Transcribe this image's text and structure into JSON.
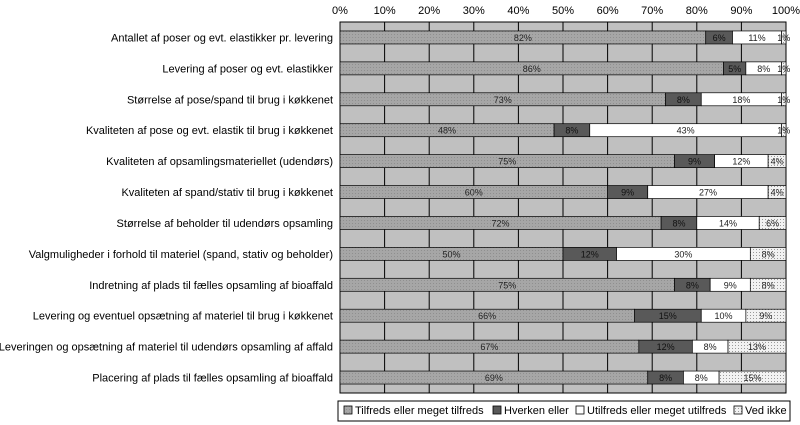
{
  "chart_data": {
    "type": "bar",
    "orientation": "horizontal",
    "stacked": true,
    "percent_stacked": true,
    "xlim": [
      0,
      100
    ],
    "x_ticks": [
      "0%",
      "10%",
      "20%",
      "30%",
      "40%",
      "50%",
      "60%",
      "70%",
      "80%",
      "90%",
      "100%"
    ],
    "grid": true,
    "legend_position": "bottom",
    "categories": [
      "Antallet af poser og evt. elastikker pr. levering",
      "Levering af poser og evt. elastikker",
      "Størrelse af pose/spand til brug i køkkenet",
      "Kvaliteten af pose og evt. elastik til brug i køkkenet",
      "Kvaliteten af opsamlingsmateriellet (udendørs)",
      "Kvaliteten af spand/stativ til brug i køkkenet",
      "Størrelse af beholder til udendørs opsamling",
      "Valgmuligheder i forhold til materiel (spand, stativ og beholder)",
      "Indretning af plads til fælles opsamling af bioaffald",
      "Levering og eventuel opsætning af materiel til brug i køkkenet",
      "Leveringen og opsætning af materiel til udendørs opsamling af affald",
      "Placering af plads til fælles opsamling af bioaffald"
    ],
    "series": [
      {
        "name": "Tilfreds eller meget tilfreds",
        "color": "#a6a6a6",
        "values": [
          82,
          86,
          73,
          48,
          75,
          60,
          72,
          50,
          75,
          66,
          67,
          69
        ],
        "labels": [
          "82%",
          "86%",
          "73%",
          "48%",
          "75%",
          "60%",
          "72%",
          "50%",
          "75%",
          "66%",
          "67%",
          "69%"
        ]
      },
      {
        "name": "Hverken eller",
        "color": "#595959",
        "values": [
          6,
          5,
          8,
          8,
          9,
          9,
          8,
          12,
          8,
          15,
          12,
          8
        ],
        "labels": [
          "6%",
          "5%",
          "8%",
          "8%",
          "9%",
          "9%",
          "8%",
          "12%",
          "8%",
          "15%",
          "12%",
          "8%"
        ]
      },
      {
        "name": "Utilfreds eller meget utilfreds",
        "color": "#ffffff",
        "values": [
          11,
          8,
          18,
          43,
          12,
          27,
          14,
          30,
          9,
          10,
          8,
          8
        ],
        "labels": [
          "11%",
          "8%",
          "18%",
          "43%",
          "12%",
          "27%",
          "14%",
          "30%",
          "9%",
          "10%",
          "8%",
          "8%"
        ]
      },
      {
        "name": "Ved ikke",
        "color": "#eeeeee",
        "values": [
          1,
          1,
          1,
          1,
          4,
          4,
          6,
          8,
          8,
          9,
          13,
          15
        ],
        "labels": [
          "1%",
          "1%",
          "1%",
          "1%",
          "4%",
          "4%",
          "6%",
          "8%",
          "8%",
          "9%",
          "13%",
          "15%"
        ]
      }
    ],
    "plot_background": "#c0c0c0",
    "gridline_color": "#000000"
  }
}
